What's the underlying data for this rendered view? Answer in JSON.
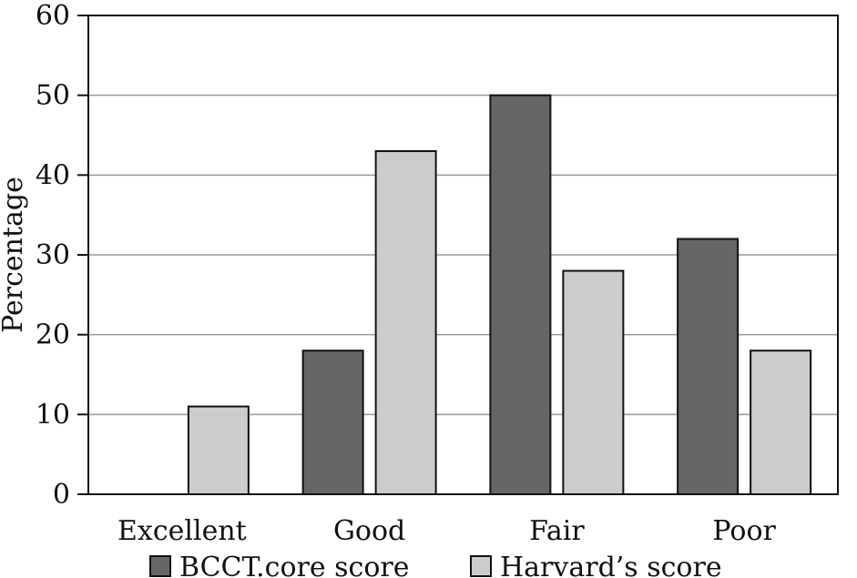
{
  "chart_data": {
    "type": "bar",
    "title": "",
    "xlabel": "",
    "ylabel": "Percentage",
    "ylim": [
      0,
      60
    ],
    "yticks": [
      0,
      10,
      20,
      30,
      40,
      50,
      60
    ],
    "grid": "horizontal",
    "legend_position": "bottom",
    "categories": [
      "Excellent",
      "Good",
      "Fair",
      "Poor"
    ],
    "series": [
      {
        "name": "BCCT.core score",
        "values": [
          0,
          18,
          50,
          32
        ],
        "color": "#666666"
      },
      {
        "name": "Harvard’s score",
        "values": [
          11,
          43,
          28,
          18
        ],
        "color": "#cccccc"
      }
    ]
  }
}
